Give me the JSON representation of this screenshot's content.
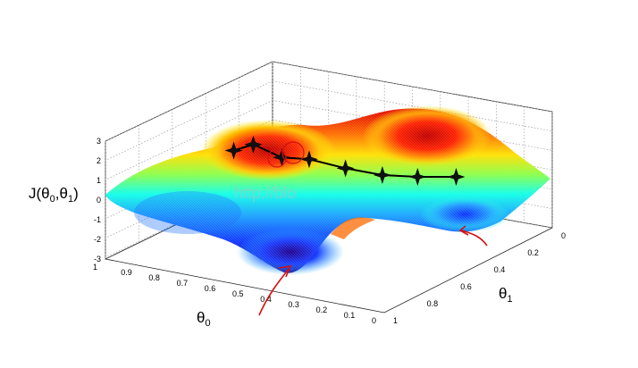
{
  "chart_data": {
    "type": "surface",
    "xlabel": "θ",
    "xlabel_sub": "0",
    "ylabel": "θ",
    "ylabel_sub": "1",
    "zlabel_main": "J(θ",
    "zlabel_sub0": "0",
    "zlabel_mid": ",θ",
    "zlabel_sub1": "1",
    "zlabel_end": ")",
    "x_ticks": [
      "1",
      "0.9",
      "0.8",
      "0.7",
      "0.6",
      "0.5",
      "0.4",
      "0.3",
      "0.2",
      "0.1",
      "0"
    ],
    "y_ticks": [
      "0",
      "0.2",
      "0.4",
      "0.6",
      "0.8",
      "1"
    ],
    "z_ticks": [
      "3",
      "2",
      "1",
      "0",
      "-1",
      "-2",
      "-3"
    ],
    "xlim": [
      0,
      1
    ],
    "ylim": [
      0,
      1
    ],
    "zlim": [
      -3,
      3
    ],
    "grid": true,
    "colormap": "jet",
    "descent_path": [
      {
        "theta0": 0.6,
        "theta1": 0.1,
        "J": 2.0
      },
      {
        "theta0": 0.56,
        "theta1": 0.15,
        "J": 2.2
      },
      {
        "theta0": 0.5,
        "theta1": 0.22,
        "J": 1.4
      },
      {
        "theta0": 0.45,
        "theta1": 0.3,
        "J": 1.1
      },
      {
        "theta0": 0.38,
        "theta1": 0.4,
        "J": 0.4
      },
      {
        "theta0": 0.32,
        "theta1": 0.52,
        "J": -0.3
      },
      {
        "theta0": 0.26,
        "theta1": 0.63,
        "J": -0.7
      },
      {
        "theta0": 0.2,
        "theta1": 0.76,
        "J": -1.1
      }
    ],
    "watermark": "http://blo"
  },
  "colors": {
    "path": "#000000",
    "highlight": "#d41010"
  }
}
